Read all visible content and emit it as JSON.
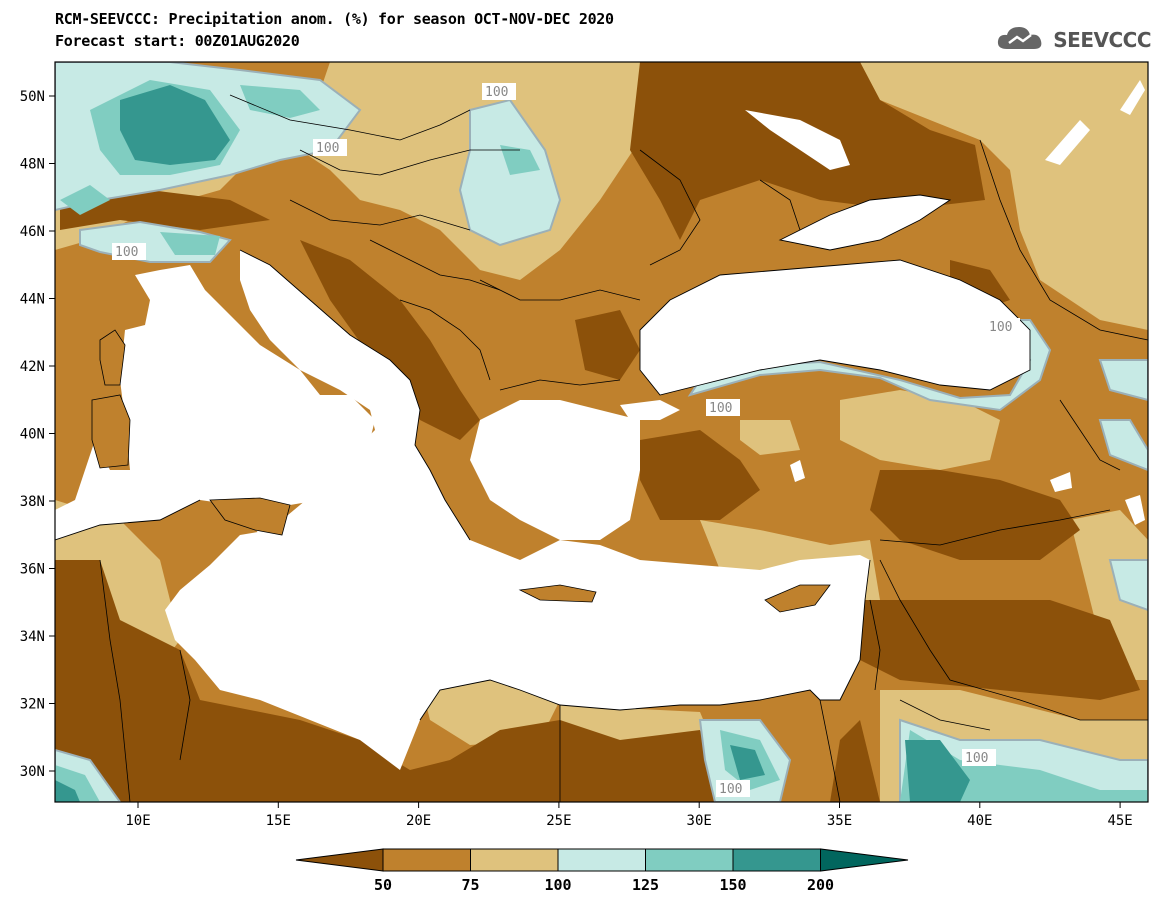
{
  "title": {
    "line1": "RCM-SEEVCCC: Precipitation anom. (%) for season OCT-NOV-DEC 2020",
    "line2": "Forecast start: 00Z01AUG2020"
  },
  "logo": {
    "text": "SEEVCCC",
    "icon": "cloud-icon"
  },
  "map": {
    "lon_ticks": [
      "10E",
      "15E",
      "20E",
      "25E",
      "30E",
      "35E",
      "40E",
      "45E"
    ],
    "lat_ticks": [
      "50N",
      "48N",
      "46N",
      "44N",
      "42N",
      "40N",
      "38N",
      "36N",
      "34N",
      "32N",
      "30N"
    ],
    "contour_labels": [
      "100",
      "100",
      "100",
      "100",
      "100",
      "100",
      "100",
      "100"
    ]
  },
  "colorbar": {
    "levels": [
      "50",
      "75",
      "100",
      "125",
      "150",
      "200"
    ],
    "colors": [
      "#8c510a",
      "#bf812d",
      "#dfc27d",
      "#c7eae5",
      "#80cdc1",
      "#35978f",
      "#01665e"
    ]
  }
}
